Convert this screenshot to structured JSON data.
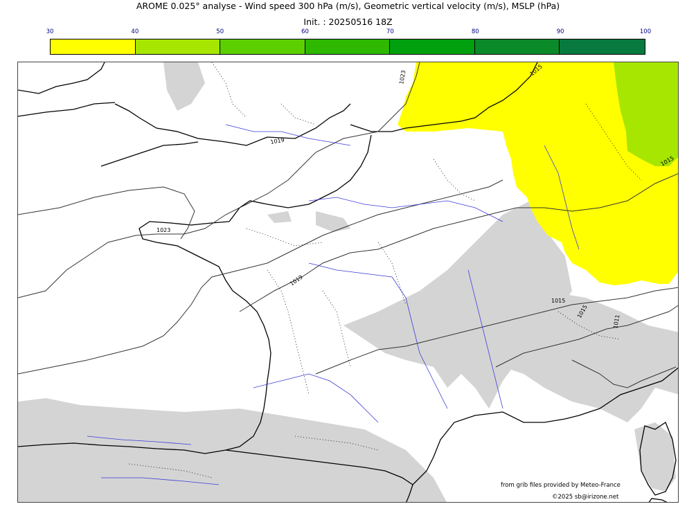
{
  "header": {
    "title": "AROME 0.025° analyse - Wind speed 300 hPa (m/s), Geometric vertical velocity (m/s), MSLP (hPa)",
    "subtitle": "Init. : 20250516 18Z"
  },
  "colorbar": {
    "ticks": [
      "30",
      "40",
      "50",
      "60",
      "70",
      "80",
      "90",
      "100"
    ],
    "colors": [
      "#ffff00",
      "#a6e600",
      "#5ccf00",
      "#2eb800",
      "#00a00f",
      "#0b8a2a",
      "#087a3f"
    ]
  },
  "map": {
    "isobar_labels": [
      "1023",
      "1023",
      "1019",
      "1019",
      "1015",
      "1015",
      "1015",
      "1015",
      "1011"
    ],
    "wind_fill_color": "#ffff00",
    "wind_fill_high_color": "#a6e600",
    "vertical_velocity_color": "#d4d4d4",
    "coast_color": "#000000",
    "river_color": "#3b3bd9",
    "isobar_color": "#333333"
  },
  "footer": {
    "source": "from grib files provided by Meteo-France",
    "copyright": "©2025 sb@irizone.net"
  }
}
